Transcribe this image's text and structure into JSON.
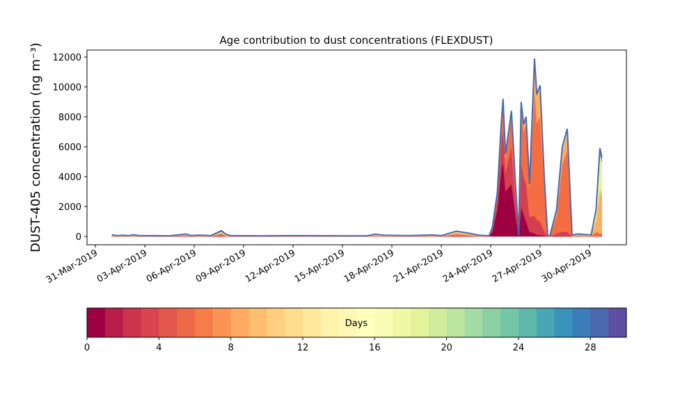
{
  "chart_data": {
    "type": "stacked_area",
    "title": "Age contribution to dust concentrations (FLEXDUST)",
    "y_label": "DUST-405 concentration (ng m⁻³)",
    "xlim": [
      -0.51,
      32.24
    ],
    "xticks": [
      {
        "value": 0,
        "label": "31-Mar-2019"
      },
      {
        "value": 3,
        "label": "03-Apr-2019"
      },
      {
        "value": 6,
        "label": "06-Apr-2019"
      },
      {
        "value": 9,
        "label": "09-Apr-2019"
      },
      {
        "value": 12,
        "label": "12-Apr-2019"
      },
      {
        "value": 15,
        "label": "15-Apr-2019"
      },
      {
        "value": 18,
        "label": "18-Apr-2019"
      },
      {
        "value": 21,
        "label": "21-Apr-2019"
      },
      {
        "value": 24,
        "label": "24-Apr-2019"
      },
      {
        "value": 27,
        "label": "27-Apr-2019"
      },
      {
        "value": 30,
        "label": "30-Apr-2019"
      }
    ],
    "ylim": [
      -558,
      12465
    ],
    "yticks": [
      0,
      2000,
      4000,
      6000,
      8000,
      10000,
      12000
    ],
    "x": [
      1.0,
      1.3,
      1.7,
      2.0,
      2.3,
      2.7,
      3.5,
      4.5,
      5.5,
      5.8,
      6.3,
      7.0,
      7.65,
      7.9,
      8.2,
      10,
      11.5,
      13,
      15,
      16.5,
      17.0,
      17.5,
      19,
      20.5,
      21,
      21.9,
      22.5,
      23.3,
      23.9,
      24.1,
      24.4,
      24.65,
      24.75,
      24.9,
      25.26,
      25.5,
      25.7,
      25.85,
      26.0,
      26.15,
      26.36,
      26.66,
      26.8,
      27.0,
      27.25,
      27.46,
      27.6,
      28.0,
      28.35,
      28.65,
      28.94,
      29.3,
      30.1,
      30.4,
      30.63,
      30.75
    ],
    "series": [
      {
        "color": "#9e0142",
        "values": [
          0,
          0,
          0,
          0,
          0,
          0,
          0,
          0,
          0,
          0,
          0,
          0,
          0,
          0,
          0,
          0,
          0,
          0,
          0,
          0,
          0,
          0,
          0,
          0,
          0,
          0,
          0,
          0,
          0,
          300,
          1800,
          4500,
          5000,
          3000,
          3500,
          1500,
          50,
          2000,
          1500,
          1000,
          300,
          200,
          100,
          100,
          50,
          0,
          0,
          0,
          0,
          0,
          0,
          0,
          0,
          0,
          0,
          0
        ]
      },
      {
        "color": "#d53e4f",
        "values": [
          0,
          0,
          0,
          0,
          0,
          0,
          0,
          0,
          20,
          0,
          0,
          0,
          60,
          0,
          0,
          0,
          0,
          0,
          0,
          0,
          0,
          0,
          0,
          0,
          0,
          40,
          30,
          0,
          0,
          150,
          600,
          1800,
          2200,
          1300,
          2500,
          1000,
          20,
          3000,
          2500,
          2500,
          1000,
          1200,
          1000,
          900,
          300,
          0,
          0,
          200,
          300,
          300,
          0,
          0,
          0,
          0,
          0,
          0
        ]
      },
      {
        "color": "#f46d43",
        "values": [
          20,
          10,
          10,
          10,
          20,
          10,
          10,
          10,
          40,
          10,
          20,
          10,
          120,
          40,
          10,
          10,
          10,
          10,
          5,
          5,
          30,
          10,
          10,
          20,
          10,
          120,
          70,
          20,
          10,
          100,
          300,
          1000,
          1500,
          900,
          2000,
          800,
          20,
          3500,
          3000,
          4000,
          2000,
          8500,
          6500,
          7000,
          3000,
          20,
          20,
          1200,
          4500,
          5500,
          30,
          50,
          30,
          300,
          200,
          200
        ]
      },
      {
        "color": "#fdae61",
        "values": [
          30,
          10,
          20,
          10,
          30,
          10,
          10,
          10,
          40,
          10,
          20,
          10,
          80,
          40,
          10,
          10,
          10,
          10,
          10,
          10,
          40,
          20,
          10,
          30,
          10,
          100,
          80,
          20,
          10,
          50,
          100,
          200,
          300,
          200,
          300,
          200,
          10,
          400,
          400,
          400,
          150,
          1800,
          1700,
          1900,
          600,
          20,
          20,
          300,
          900,
          1100,
          30,
          50,
          30,
          800,
          3000,
          2600
        ]
      },
      {
        "color": "#e6f598",
        "values": [
          30,
          10,
          20,
          10,
          30,
          10,
          10,
          10,
          30,
          10,
          20,
          10,
          60,
          40,
          10,
          10,
          10,
          10,
          10,
          10,
          40,
          20,
          10,
          20,
          10,
          50,
          40,
          20,
          10,
          0,
          50,
          100,
          100,
          50,
          50,
          50,
          0,
          50,
          50,
          50,
          30,
          100,
          100,
          100,
          50,
          10,
          10,
          50,
          150,
          150,
          20,
          30,
          20,
          500,
          2400,
          2200
        ]
      },
      {
        "color": "#3288bd",
        "values": [
          30,
          20,
          30,
          20,
          30,
          20,
          20,
          10,
          30,
          20,
          30,
          20,
          60,
          40,
          20,
          10,
          20,
          20,
          15,
          15,
          40,
          30,
          20,
          30,
          20,
          40,
          30,
          20,
          10,
          0,
          50,
          100,
          100,
          50,
          50,
          50,
          0,
          50,
          50,
          50,
          20,
          100,
          100,
          100,
          50,
          10,
          10,
          50,
          150,
          150,
          20,
          30,
          20,
          200,
          300,
          300
        ]
      }
    ],
    "outline_color": "#4a69ae",
    "colorbar": {
      "label": "Days",
      "lim": [
        0,
        30
      ],
      "ticks": [
        0,
        4,
        8,
        12,
        16,
        20,
        24,
        28
      ],
      "colors": [
        "#9e0142",
        "#b91e48",
        "#cc334c",
        "#d9444e",
        "#e4574d",
        "#ee6a47",
        "#f67d4a",
        "#f99455",
        "#fca961",
        "#fdbe70",
        "#fdcf7f",
        "#fedd8d",
        "#fee89b",
        "#fff3ac",
        "#fff8b4",
        "#ffffbe",
        "#f8fcb4",
        "#eef8a6",
        "#e2f39a",
        "#d0ec9c",
        "#bce5a0",
        "#a4daa4",
        "#8cd0a4",
        "#74c6a5",
        "#5eb7a9",
        "#4aa6b2",
        "#3892bb",
        "#3a7db8",
        "#4a69ae",
        "#5e4fa2"
      ]
    }
  }
}
